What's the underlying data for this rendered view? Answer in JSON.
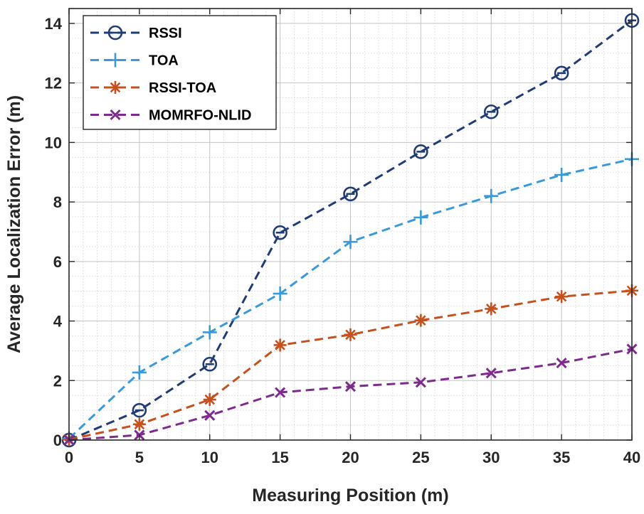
{
  "chart_data": {
    "type": "line",
    "xlabel": "Measuring Position (m)",
    "ylabel": "Average Localization Error (m)",
    "xlim": [
      0,
      40
    ],
    "ylim": [
      0,
      14.5
    ],
    "xticks": [
      0,
      5,
      10,
      15,
      20,
      25,
      30,
      35,
      40
    ],
    "yticks": [
      0,
      2,
      4,
      6,
      8,
      10,
      12,
      14
    ],
    "grid": true,
    "minor_grid": true,
    "legend_position": "top-left",
    "x": [
      0,
      5,
      10,
      15,
      20,
      25,
      30,
      35,
      40
    ],
    "series": [
      {
        "name": "RSSI",
        "color": "#1f3c75",
        "marker": "circle-minus",
        "values": [
          0.0,
          1.0,
          2.55,
          6.97,
          8.27,
          9.69,
          11.03,
          12.33,
          14.1
        ]
      },
      {
        "name": "TOA",
        "color": "#3a9ad9",
        "marker": "plus",
        "values": [
          0.05,
          2.27,
          3.62,
          4.92,
          6.66,
          7.48,
          8.2,
          8.91,
          9.44
        ]
      },
      {
        "name": "RSSI-TOA",
        "color": "#c5511e",
        "marker": "asterisk",
        "values": [
          0.02,
          0.53,
          1.36,
          3.19,
          3.54,
          4.02,
          4.41,
          4.82,
          5.02
        ]
      },
      {
        "name": "MOMRFO-NLID",
        "color": "#7e2b8e",
        "marker": "x",
        "values": [
          0.0,
          0.17,
          0.83,
          1.6,
          1.8,
          1.94,
          2.25,
          2.59,
          3.06
        ]
      }
    ]
  }
}
